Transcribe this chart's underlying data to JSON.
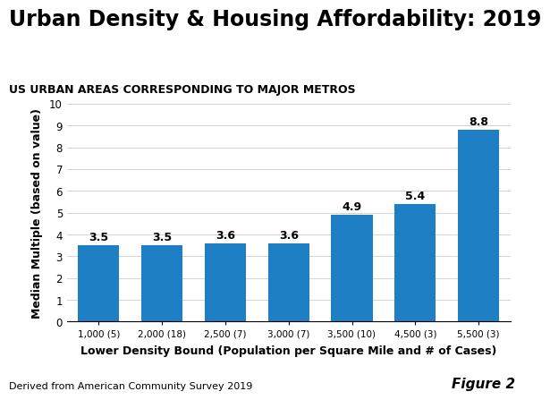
{
  "title": "Urban Density & Housing Affordability: 2019",
  "subtitle": "US URBAN AREAS CORRESPONDING TO MAJOR METROS",
  "categories": [
    "1,000 (5)",
    "2,000 (18)",
    "2,500 (7)",
    "3,000 (7)",
    "3,500 (10)",
    "4,500 (3)",
    "5,500 (3)"
  ],
  "values": [
    3.5,
    3.5,
    3.6,
    3.6,
    4.9,
    5.4,
    8.8
  ],
  "bar_color": "#1f7fc4",
  "xlabel": "Lower Density Bound (Population per Square Mile and # of Cases)",
  "ylabel": "Median Multiple (based on value)",
  "ylim": [
    0,
    10
  ],
  "yticks": [
    0,
    1,
    2,
    3,
    4,
    5,
    6,
    7,
    8,
    9,
    10
  ],
  "footnote": "Derived from American Community Survey 2019",
  "figure_label": "Figure 2",
  "title_fontsize": 17,
  "subtitle_fontsize": 9,
  "label_fontsize": 9,
  "bar_label_fontsize": 9,
  "footnote_fontsize": 8,
  "figure_label_fontsize": 11
}
